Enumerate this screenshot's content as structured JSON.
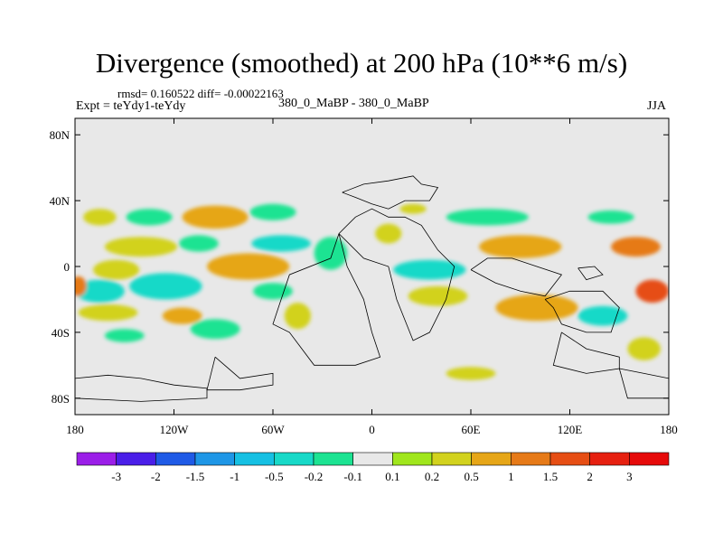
{
  "chart_data": {
    "type": "heatmap",
    "title": "Divergence (smoothed) at 200 hPa (10**6 m/s)",
    "stats": {
      "rmsd_label": "rmsd= 0.160522",
      "diff_label": "diff= -0.00022163"
    },
    "experiment": "Expt = teYdy1-teYdy",
    "cases": "380_0_MaBP - 380_0_MaBP",
    "season": "JJA",
    "x_axis": {
      "range": [
        -180,
        180
      ],
      "ticks": [
        -180,
        -120,
        -60,
        0,
        60,
        120,
        180
      ],
      "tick_labels": [
        "180",
        "120W",
        "60W",
        "0",
        "60E",
        "120E",
        "180"
      ]
    },
    "y_axis": {
      "range": [
        -90,
        90
      ],
      "ticks": [
        80,
        40,
        0,
        -40,
        -80
      ],
      "tick_labels": [
        "80N",
        "40N",
        "0",
        "40S",
        "80S"
      ]
    },
    "colorbar": {
      "levels": [
        "-3",
        "-2",
        "-1.5",
        "-1",
        "-0.5",
        "-0.2",
        "-0.1",
        "0.1",
        "0.2",
        "0.5",
        "1",
        "1.5",
        "2",
        "3"
      ],
      "colors": [
        "#9b1ee8",
        "#4a1ee8",
        "#1f5ae6",
        "#1e96e6",
        "#16c0e3",
        "#18d9c8",
        "#1ce392",
        "#e8e8e8",
        "#a0e61c",
        "#d2d21e",
        "#e6a618",
        "#e67a18",
        "#e64e14",
        "#e62010",
        "#e60a0a"
      ]
    },
    "anomalies": [
      {
        "lon": -165,
        "lat": 30,
        "rx": 10,
        "ry": 5,
        "value": 0.2
      },
      {
        "lon": -135,
        "lat": 30,
        "rx": 14,
        "ry": 5,
        "value": -0.2
      },
      {
        "lon": -95,
        "lat": 30,
        "rx": 20,
        "ry": 7,
        "value": 0.5
      },
      {
        "lon": -60,
        "lat": 33,
        "rx": 14,
        "ry": 5,
        "value": -0.2
      },
      {
        "lon": -140,
        "lat": 12,
        "rx": 22,
        "ry": 6,
        "value": 0.2
      },
      {
        "lon": -105,
        "lat": 14,
        "rx": 12,
        "ry": 5,
        "value": -0.2
      },
      {
        "lon": -55,
        "lat": 14,
        "rx": 18,
        "ry": 5,
        "value": -0.5
      },
      {
        "lon": -155,
        "lat": -2,
        "rx": 14,
        "ry": 6,
        "value": 0.2
      },
      {
        "lon": -75,
        "lat": 0,
        "rx": 25,
        "ry": 8,
        "value": 0.5
      },
      {
        "lon": -165,
        "lat": -15,
        "rx": 15,
        "ry": 7,
        "value": -0.5
      },
      {
        "lon": -125,
        "lat": -12,
        "rx": 22,
        "ry": 8,
        "value": -0.5
      },
      {
        "lon": -60,
        "lat": -15,
        "rx": 12,
        "ry": 5,
        "value": -0.2
      },
      {
        "lon": -178,
        "lat": -12,
        "rx": 5,
        "ry": 6,
        "value": 1
      },
      {
        "lon": -160,
        "lat": -28,
        "rx": 18,
        "ry": 5,
        "value": 0.2
      },
      {
        "lon": -115,
        "lat": -30,
        "rx": 12,
        "ry": 5,
        "value": 0.5
      },
      {
        "lon": -150,
        "lat": -42,
        "rx": 12,
        "ry": 4,
        "value": -0.2
      },
      {
        "lon": -95,
        "lat": -38,
        "rx": 15,
        "ry": 6,
        "value": -0.2
      },
      {
        "lon": -45,
        "lat": -30,
        "rx": 8,
        "ry": 8,
        "value": 0.2
      },
      {
        "lon": -25,
        "lat": 8,
        "rx": 10,
        "ry": 10,
        "value": -0.2
      },
      {
        "lon": 10,
        "lat": 20,
        "rx": 8,
        "ry": 6,
        "value": 0.2
      },
      {
        "lon": 25,
        "lat": 35,
        "rx": 8,
        "ry": 3,
        "value": 0.2
      },
      {
        "lon": 35,
        "lat": -2,
        "rx": 22,
        "ry": 6,
        "value": -0.5
      },
      {
        "lon": 40,
        "lat": -18,
        "rx": 18,
        "ry": 6,
        "value": 0.2
      },
      {
        "lon": 60,
        "lat": -65,
        "rx": 15,
        "ry": 4,
        "value": 0.2
      },
      {
        "lon": 70,
        "lat": 30,
        "rx": 25,
        "ry": 5,
        "value": -0.2
      },
      {
        "lon": 90,
        "lat": 12,
        "rx": 25,
        "ry": 7,
        "value": 0.5
      },
      {
        "lon": 145,
        "lat": 30,
        "rx": 14,
        "ry": 4,
        "value": -0.2
      },
      {
        "lon": 160,
        "lat": 12,
        "rx": 15,
        "ry": 6,
        "value": 1
      },
      {
        "lon": 100,
        "lat": -25,
        "rx": 25,
        "ry": 8,
        "value": 0.5
      },
      {
        "lon": 140,
        "lat": -30,
        "rx": 15,
        "ry": 6,
        "value": -0.5
      },
      {
        "lon": 170,
        "lat": -15,
        "rx": 10,
        "ry": 7,
        "value": 1.5
      },
      {
        "lon": 165,
        "lat": -50,
        "rx": 10,
        "ry": 7,
        "value": 0.2
      }
    ],
    "coastlines": [
      [
        [
          -20,
          20
        ],
        [
          -15,
          0
        ],
        [
          -10,
          -10
        ],
        [
          -5,
          -20
        ],
        [
          0,
          -40
        ],
        [
          5,
          -55
        ],
        [
          -10,
          -60
        ],
        [
          -35,
          -60
        ],
        [
          -50,
          -40
        ],
        [
          -60,
          -35
        ],
        [
          -55,
          -20
        ],
        [
          -50,
          -5
        ],
        [
          -25,
          5
        ],
        [
          -20,
          20
        ]
      ],
      [
        [
          -18,
          45
        ],
        [
          -5,
          50
        ],
        [
          10,
          52
        ],
        [
          25,
          55
        ],
        [
          30,
          50
        ],
        [
          40,
          48
        ],
        [
          35,
          40
        ],
        [
          20,
          40
        ],
        [
          10,
          35
        ],
        [
          0,
          38
        ],
        [
          -10,
          42
        ],
        [
          -18,
          45
        ]
      ],
      [
        [
          -20,
          20
        ],
        [
          -10,
          30
        ],
        [
          0,
          35
        ],
        [
          10,
          30
        ],
        [
          20,
          30
        ],
        [
          30,
          25
        ],
        [
          40,
          10
        ],
        [
          50,
          0
        ],
        [
          45,
          -20
        ],
        [
          35,
          -40
        ],
        [
          25,
          -45
        ],
        [
          15,
          -20
        ],
        [
          10,
          0
        ],
        [
          -5,
          5
        ],
        [
          -20,
          20
        ]
      ],
      [
        [
          60,
          -2
        ],
        [
          75,
          -10
        ],
        [
          90,
          -15
        ],
        [
          105,
          -18
        ],
        [
          115,
          -5
        ],
        [
          100,
          0
        ],
        [
          85,
          5
        ],
        [
          70,
          5
        ],
        [
          60,
          -2
        ]
      ],
      [
        [
          105,
          -20
        ],
        [
          120,
          -15
        ],
        [
          140,
          -15
        ],
        [
          150,
          -25
        ],
        [
          145,
          -40
        ],
        [
          130,
          -40
        ],
        [
          115,
          -35
        ],
        [
          110,
          -25
        ],
        [
          105,
          -20
        ]
      ],
      [
        [
          115,
          -40
        ],
        [
          130,
          -50
        ],
        [
          150,
          -55
        ],
        [
          150,
          -62
        ],
        [
          130,
          -65
        ],
        [
          110,
          -60
        ],
        [
          115,
          -40
        ]
      ],
      [
        [
          125,
          -1
        ],
        [
          135,
          0
        ],
        [
          140,
          -5
        ],
        [
          130,
          -8
        ],
        [
          125,
          -1
        ]
      ],
      [
        [
          -95,
          -55
        ],
        [
          -80,
          -68
        ],
        [
          -60,
          -65
        ],
        [
          -60,
          -72
        ],
        [
          -80,
          -75
        ],
        [
          -100,
          -75
        ],
        [
          -95,
          -55
        ]
      ],
      [
        [
          -180,
          -68
        ],
        [
          -160,
          -66
        ],
        [
          -140,
          -68
        ],
        [
          -120,
          -72
        ],
        [
          -100,
          -74
        ],
        [
          -100,
          -80
        ],
        [
          -140,
          -82
        ],
        [
          -180,
          -80
        ],
        [
          -180,
          -68
        ]
      ],
      [
        [
          150,
          -62
        ],
        [
          165,
          -65
        ],
        [
          180,
          -68
        ],
        [
          180,
          -80
        ],
        [
          155,
          -80
        ],
        [
          150,
          -62
        ]
      ]
    ]
  }
}
